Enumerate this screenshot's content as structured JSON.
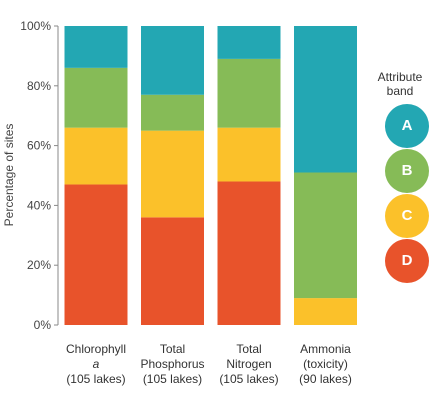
{
  "chart_data": {
    "type": "bar",
    "stacked": true,
    "percent": true,
    "ylabel": "Percentage of sites",
    "ylim": [
      0,
      100
    ],
    "yticks": [
      "0%",
      "20%",
      "40%",
      "60%",
      "80%",
      "100%"
    ],
    "categories": [
      {
        "line1": "Chlorophyll",
        "line2": "a",
        "line3": "(105 lakes)",
        "italic_line2": true
      },
      {
        "line1": "Total",
        "line2": "Phosphorus",
        "line3": "(105 lakes)",
        "italic_line2": false
      },
      {
        "line1": "Total",
        "line2": "Nitrogen",
        "line3": "(105 lakes)",
        "italic_line2": false
      },
      {
        "line1": "Ammonia",
        "line2": "(toxicity)",
        "line3": "(90 lakes)",
        "italic_line2": false
      }
    ],
    "series": [
      {
        "name": "D",
        "color": "#e8532b",
        "values": [
          47,
          36,
          48,
          0
        ]
      },
      {
        "name": "C",
        "color": "#fbc12a",
        "values": [
          19,
          29,
          18,
          9
        ]
      },
      {
        "name": "B",
        "color": "#86bb57",
        "values": [
          20,
          12,
          23,
          42
        ]
      },
      {
        "name": "A",
        "color": "#23a7b3",
        "values": [
          14,
          23,
          11,
          49
        ]
      }
    ],
    "legend": {
      "title_line1": "Attribute",
      "title_line2": "band",
      "position": "right",
      "order": [
        "A",
        "B",
        "C",
        "D"
      ]
    },
    "grid": false
  }
}
